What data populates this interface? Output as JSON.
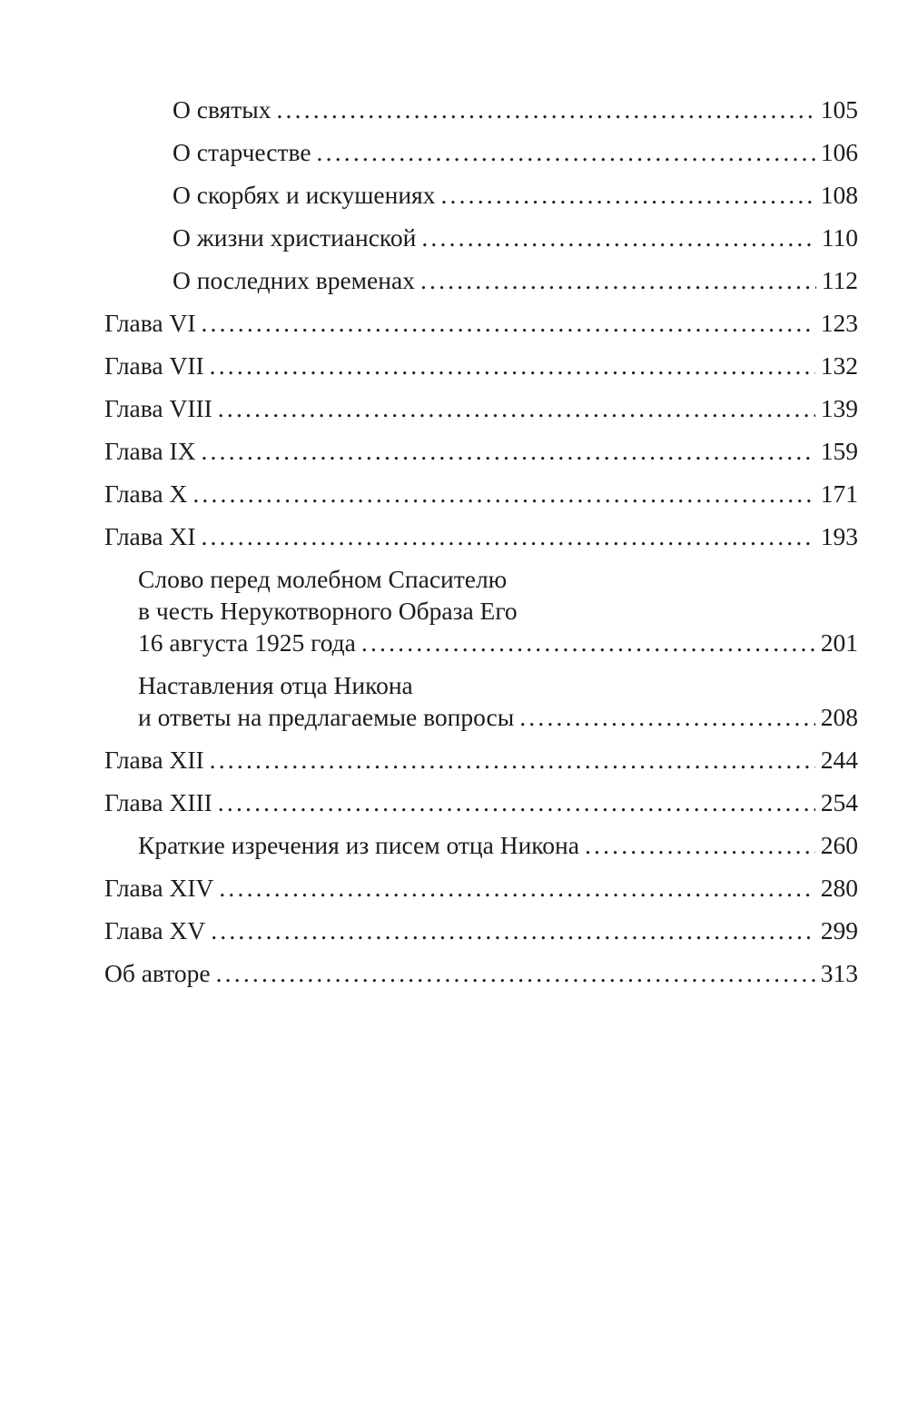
{
  "toc": [
    {
      "level": 2,
      "lines": [
        "О святых"
      ],
      "page": "105"
    },
    {
      "level": 2,
      "lines": [
        "О старчестве"
      ],
      "page": "106"
    },
    {
      "level": 2,
      "lines": [
        "О скорбях и искушениях"
      ],
      "page": "108"
    },
    {
      "level": 2,
      "lines": [
        "О жизни христианской"
      ],
      "page": "110"
    },
    {
      "level": 2,
      "lines": [
        "О последних временах"
      ],
      "page": "112"
    },
    {
      "level": 0,
      "lines": [
        "Глава VI"
      ],
      "page": "123"
    },
    {
      "level": 0,
      "lines": [
        "Глава VII"
      ],
      "page": "132"
    },
    {
      "level": 0,
      "lines": [
        "Глава VIII"
      ],
      "page": "139"
    },
    {
      "level": 0,
      "lines": [
        "Глава IX"
      ],
      "page": "159"
    },
    {
      "level": 0,
      "lines": [
        "Глава X"
      ],
      "page": "171"
    },
    {
      "level": 0,
      "lines": [
        "Глава XI"
      ],
      "page": "193"
    },
    {
      "level": 1,
      "lines": [
        "Слово перед молебном Спасителю",
        "в честь Нерукотворного Образа Его",
        "16 августа 1925 года"
      ],
      "page": "201"
    },
    {
      "level": 1,
      "lines": [
        "Наставления отца Никона",
        "и ответы на предлагаемые вопросы"
      ],
      "page": "208"
    },
    {
      "level": 0,
      "lines": [
        "Глава XII"
      ],
      "page": "244"
    },
    {
      "level": 0,
      "lines": [
        "Глава XIII"
      ],
      "page": "254"
    },
    {
      "level": 1,
      "lines": [
        "Краткие изречения из писем отца Никона"
      ],
      "page": "260"
    },
    {
      "level": 0,
      "lines": [
        "Глава XIV"
      ],
      "page": "280"
    },
    {
      "level": 0,
      "lines": [
        "Глава XV"
      ],
      "page": "299"
    },
    {
      "level": 0,
      "lines": [
        "Об авторе"
      ],
      "page": "313"
    }
  ]
}
